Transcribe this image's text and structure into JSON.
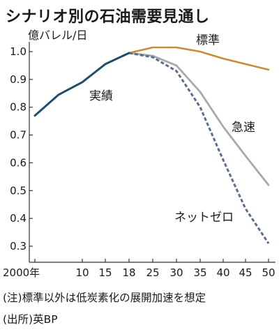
{
  "title": "シナリオ別の石油需要見通し",
  "unit_label": "億バレル/日",
  "note": "(注)標準以外は低炭素化の展開加速を想定",
  "source": "(出所)英BP",
  "colors": {
    "actual": "#1f4e6b",
    "standard": "#c98a3a",
    "rapid": "#a9a9a9",
    "netzero": "#5a6f8f",
    "axis": "#333333"
  },
  "chart_data": {
    "type": "line",
    "title": "シナリオ別の石油需要見通し",
    "ylabel": "億バレル/日",
    "xlabel": "",
    "ylim": [
      0.3,
      1.05
    ],
    "y_ticks": [
      1.0,
      0.9,
      0.8,
      0.7,
      0.6,
      0.5,
      0.4,
      0.3
    ],
    "y_tick_labels": [
      "1.0",
      "0.9",
      "0.8",
      "0.7",
      "0.6",
      "0.5",
      "0.4",
      "0.3"
    ],
    "x_ticks": [
      2000,
      2010,
      2015,
      2018,
      2025,
      2030,
      2035,
      2040,
      2045,
      2050
    ],
    "x_tick_labels": [
      "2000年",
      "10",
      "15",
      "18",
      "25",
      "30",
      "35",
      "40",
      "45",
      "50"
    ],
    "series": [
      {
        "name": "実績",
        "style": "solid",
        "x": [
          2000,
          2005,
          2010,
          2015,
          2018
        ],
        "values": [
          0.77,
          0.845,
          0.89,
          0.955,
          0.995
        ]
      },
      {
        "name": "標準",
        "style": "solid",
        "x": [
          2018,
          2025,
          2030,
          2035,
          2040,
          2045,
          2050
        ],
        "values": [
          0.995,
          1.015,
          1.015,
          1.0,
          0.975,
          0.955,
          0.935
        ]
      },
      {
        "name": "急速",
        "style": "solid",
        "x": [
          2018,
          2025,
          2030,
          2035,
          2040,
          2045,
          2050
        ],
        "values": [
          0.995,
          0.985,
          0.95,
          0.855,
          0.73,
          0.625,
          0.52
        ]
      },
      {
        "name": "ネットゼロ",
        "style": "dashed",
        "x": [
          2018,
          2025,
          2030,
          2035,
          2040,
          2045,
          2050
        ],
        "values": [
          0.995,
          0.98,
          0.93,
          0.8,
          0.61,
          0.435,
          0.31
        ]
      }
    ]
  }
}
